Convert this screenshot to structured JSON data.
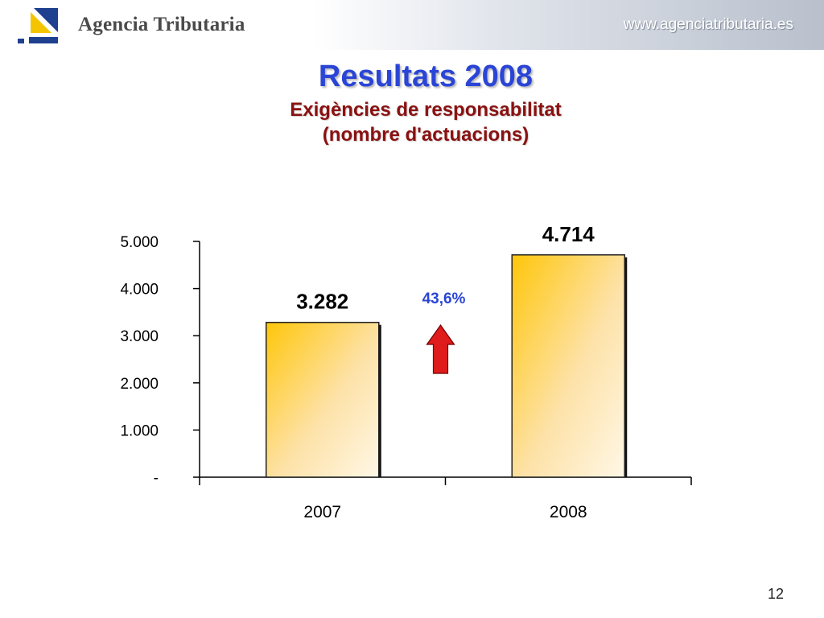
{
  "header": {
    "agency_name": "Agencia Tributaria",
    "site_url": "www.agenciatributaria.es",
    "logo_icon": "agencia-tributaria-logo-icon"
  },
  "slide": {
    "title": "Resultats 2008",
    "subtitle_line1": "Exigències de responsabilitat",
    "subtitle_line2": "(nombre d'actuacions)",
    "page_number": "12"
  },
  "colors": {
    "title": "#2a45d6",
    "subtitle": "#8a1111",
    "bar_fill_strong": "#ffc60a",
    "bar_fill_light": "#fff7e6",
    "growth_label": "#2a45d6",
    "arrow": "#e01b1b"
  },
  "chart_data": {
    "type": "bar",
    "categories": [
      "2007",
      "2008"
    ],
    "values": [
      3282,
      4714
    ],
    "value_labels": [
      "3.282",
      "4.714"
    ],
    "ylim": [
      0,
      5000
    ],
    "yticks": [
      0,
      1000,
      2000,
      3000,
      4000,
      5000
    ],
    "ytick_labels": [
      "-",
      "1.000",
      "2.000",
      "3.000",
      "4.000",
      "5.000"
    ],
    "annotation": {
      "text": "43,6%",
      "icon": "up-arrow-icon",
      "meaning": "increase"
    },
    "grid": false,
    "legend": "none"
  }
}
